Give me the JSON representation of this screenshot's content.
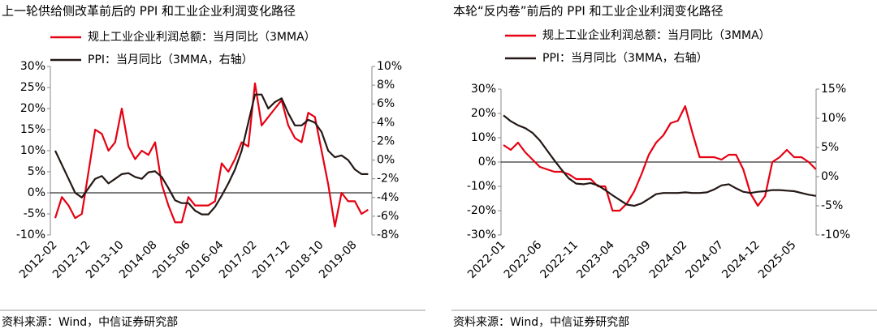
{
  "chart_data": [
    {
      "type": "line",
      "title": "上一轮供给侧改革前后的 PPI 和工业企业利润变化路径",
      "source": "资料来源：Wind，中信证券研究部",
      "legend": "top-left",
      "categories": [
        "2012-02",
        null,
        null,
        null,
        null,
        "2012-12",
        null,
        null,
        null,
        null,
        "2013-10",
        null,
        null,
        null,
        null,
        "2014-08",
        null,
        null,
        null,
        null,
        "2015-06",
        null,
        null,
        null,
        null,
        "2016-04",
        null,
        null,
        null,
        null,
        "2017-02",
        null,
        null,
        null,
        null,
        "2017-12",
        null,
        null,
        null,
        null,
        "2018-10",
        null,
        null,
        null,
        null,
        "2019-08",
        null,
        null
      ],
      "series": [
        {
          "name": "规上工业企业利润总额：当月同比（3MMA）",
          "color": "#e60012",
          "values": [
            -6,
            -1,
            -3,
            -6,
            -5,
            5,
            15,
            14,
            10,
            12,
            20,
            11,
            8,
            10,
            9,
            12,
            2,
            -3,
            -7,
            -7,
            -1,
            -3,
            -3,
            -3,
            -2,
            7,
            5,
            8,
            12,
            11,
            26,
            16,
            18,
            20,
            22,
            16,
            13,
            12,
            19,
            18,
            10,
            2,
            -8,
            0,
            -2,
            -2,
            -5,
            -4
          ]
        },
        {
          "name": "PPI：当月同比（3MMA，右轴）",
          "color": "#231815",
          "axis": "y2",
          "values": [
            1,
            -0.5,
            -2,
            -3.5,
            -4,
            -3,
            -2,
            -1.7,
            -2.5,
            -2,
            -1.5,
            -1.4,
            -1.8,
            -2,
            -1.3,
            -1.2,
            -1.8,
            -3,
            -4.3,
            -4.6,
            -4.6,
            -5.4,
            -5.8,
            -5.8,
            -5,
            -3.8,
            -2.5,
            -1,
            1,
            4,
            7,
            7,
            5.5,
            6.2,
            6.6,
            5,
            3.7,
            3.7,
            4.3,
            4,
            3,
            1,
            0.3,
            0.5,
            0,
            -1,
            -1.5,
            -1.5
          ]
        }
      ],
      "ylim": [
        -10,
        30
      ],
      "yticks": [
        {
          "value": -10,
          "label": "-10%"
        },
        {
          "value": -5,
          "label": "-5%"
        },
        {
          "value": 0,
          "label": "0%"
        },
        {
          "value": 5,
          "label": "5%"
        },
        {
          "value": 10,
          "label": "10%"
        },
        {
          "value": 15,
          "label": "15%"
        },
        {
          "value": 20,
          "label": "20%"
        },
        {
          "value": 25,
          "label": "25%"
        },
        {
          "value": 30,
          "label": "30%"
        }
      ],
      "y2lim": [
        -8,
        10
      ],
      "y2ticks": [
        {
          "value": -8,
          "label": "-8%"
        },
        {
          "value": -6,
          "label": "-6%"
        },
        {
          "value": -4,
          "label": "-4%"
        },
        {
          "value": -2,
          "label": "-2%"
        },
        {
          "value": 0,
          "label": "0%"
        },
        {
          "value": 2,
          "label": "2%"
        },
        {
          "value": 4,
          "label": "4%"
        },
        {
          "value": 6,
          "label": "6%"
        },
        {
          "value": 8,
          "label": "8%"
        },
        {
          "value": 10,
          "label": "10%"
        }
      ]
    },
    {
      "type": "line",
      "title": "本轮“反内卷”前后的 PPI 和工业企业利润变化路径",
      "source": "资料来源：Wind，中信证券研究部",
      "legend": "top-left",
      "categories": [
        "2022-01",
        null,
        null,
        null,
        null,
        "2022-06",
        null,
        null,
        null,
        null,
        "2022-11",
        null,
        null,
        null,
        null,
        "2023-04",
        null,
        null,
        null,
        null,
        "2023-09",
        null,
        null,
        null,
        null,
        "2024-02",
        null,
        null,
        null,
        null,
        "2024-07",
        null,
        null,
        null,
        null,
        "2024-12",
        null,
        null,
        null,
        null,
        "2025-05",
        null,
        null,
        null
      ],
      "series": [
        {
          "name": "规上工业企业利润总额：当月同比（3MMA）",
          "color": "#e60012",
          "values": [
            7,
            5,
            8,
            4,
            1,
            -2,
            -3,
            -4,
            -4,
            -5,
            -7,
            -7,
            -7,
            -10,
            -10,
            -20,
            -20,
            -17,
            -12,
            -5,
            3,
            8,
            11,
            16,
            17,
            23,
            12,
            2,
            2,
            2,
            1,
            3,
            3,
            -3,
            -13,
            -18,
            -14,
            0,
            2,
            5,
            2,
            2,
            0,
            -3
          ]
        },
        {
          "name": "PPI：当月同比（3MMA，右轴）",
          "color": "#231815",
          "axis": "y2",
          "values": [
            10.5,
            9.5,
            8.8,
            8.3,
            7.5,
            6.2,
            4.5,
            2.8,
            1.2,
            -0.3,
            -1.2,
            -1.3,
            -1.1,
            -1.5,
            -2.3,
            -3.2,
            -4,
            -4.8,
            -5,
            -4.6,
            -3.8,
            -3,
            -2.8,
            -2.8,
            -2.8,
            -2.7,
            -2.8,
            -2.8,
            -2.7,
            -2.2,
            -1.5,
            -1.3,
            -2,
            -2.6,
            -2.8,
            -2.6,
            -2.5,
            -2.3,
            -2.3,
            -2.4,
            -2.5,
            -2.8,
            -3.1,
            -3.3
          ]
        }
      ],
      "ylim": [
        -30,
        30
      ],
      "yticks": [
        {
          "value": -30,
          "label": "-30%"
        },
        {
          "value": -20,
          "label": "-20%"
        },
        {
          "value": -10,
          "label": "-10%"
        },
        {
          "value": 0,
          "label": "0%"
        },
        {
          "value": 10,
          "label": "10%"
        },
        {
          "value": 20,
          "label": "20%"
        },
        {
          "value": 30,
          "label": "30%"
        }
      ],
      "y2lim": [
        -10,
        15
      ],
      "y2ticks": [
        {
          "value": -10,
          "label": "-10%"
        },
        {
          "value": -5,
          "label": "-5%"
        },
        {
          "value": 0,
          "label": "0%"
        },
        {
          "value": 5,
          "label": "5%"
        },
        {
          "value": 10,
          "label": "10%"
        },
        {
          "value": 15,
          "label": "15%"
        }
      ]
    }
  ]
}
